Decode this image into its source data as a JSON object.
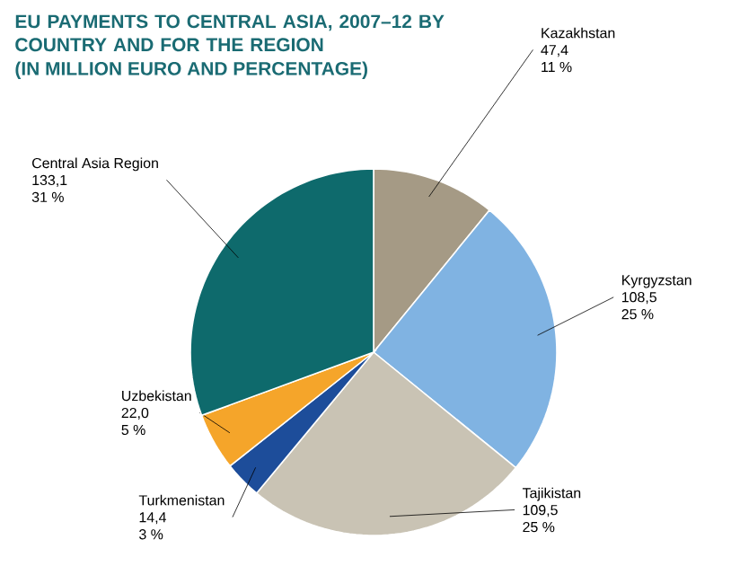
{
  "chart_data": {
    "type": "pie",
    "title": "EU PAYMENTS TO CENTRAL ASIA, 2007–12 BY COUNTRY AND FOR THE REGION",
    "subtitle": "(IN MILLION EURO AND PERCENTAGE)",
    "categories": [
      "Kazakhstan",
      "Kyrgyzstan",
      "Tajikistan",
      "Turkmenistan",
      "Uzbekistan",
      "Central Asia Region"
    ],
    "values": [
      47.4,
      108.5,
      109.5,
      14.4,
      22.0,
      133.1
    ],
    "value_labels": [
      "47,4",
      "108,5",
      "109,5",
      "14,4",
      "22,0",
      "133,1"
    ],
    "annotations": [
      "11 %",
      "25 %",
      "25 %",
      "3 %",
      "5 %",
      "31 %"
    ],
    "colors": [
      "#a59a85",
      "#80b3e2",
      "#c9c3b4",
      "#1d4d9a",
      "#f5a52a",
      "#0e6a6c"
    ]
  }
}
